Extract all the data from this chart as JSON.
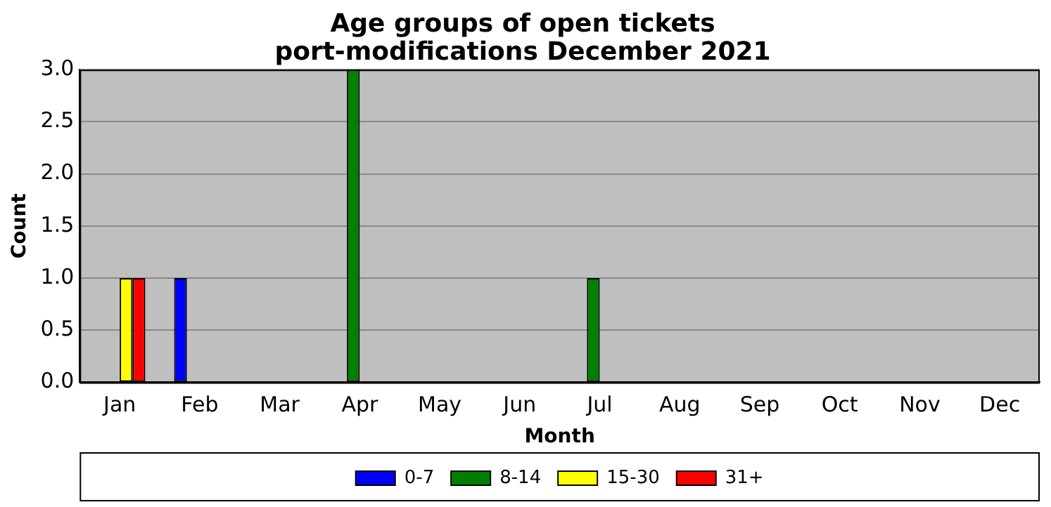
{
  "chart_data": {
    "type": "bar",
    "title": "Age groups of open tickets\nport-modifications December 2021",
    "xlabel": "Month",
    "ylabel": "Count",
    "categories": [
      "Jan",
      "Feb",
      "Mar",
      "Apr",
      "May",
      "Jun",
      "Jul",
      "Aug",
      "Sep",
      "Oct",
      "Nov",
      "Dec"
    ],
    "series": [
      {
        "name": "0-7",
        "color": "#0000ff",
        "values": [
          0,
          1,
          0,
          0,
          0,
          0,
          0,
          0,
          0,
          0,
          0,
          0
        ]
      },
      {
        "name": "8-14",
        "color": "#008000",
        "values": [
          0,
          0,
          0,
          3,
          0,
          0,
          1,
          0,
          0,
          0,
          0,
          0
        ]
      },
      {
        "name": "15-30",
        "color": "#ffff00",
        "values": [
          1,
          0,
          0,
          0,
          0,
          0,
          0,
          0,
          0,
          0,
          0,
          0
        ]
      },
      {
        "name": "31+",
        "color": "#ff0000",
        "values": [
          1,
          0,
          0,
          0,
          0,
          0,
          0,
          0,
          0,
          0,
          0,
          0
        ]
      }
    ],
    "ylim": [
      0,
      3
    ],
    "yticks": [
      {
        "value": 0,
        "label": "0.0"
      },
      {
        "value": 0.5,
        "label": "0.5"
      },
      {
        "value": 1,
        "label": "1.0"
      },
      {
        "value": 1.5,
        "label": "1.5"
      },
      {
        "value": 2,
        "label": "2.0"
      },
      {
        "value": 2.5,
        "label": "2.5"
      },
      {
        "value": 3,
        "label": "3.0"
      }
    ],
    "grid": "y",
    "legend": "bottom"
  }
}
